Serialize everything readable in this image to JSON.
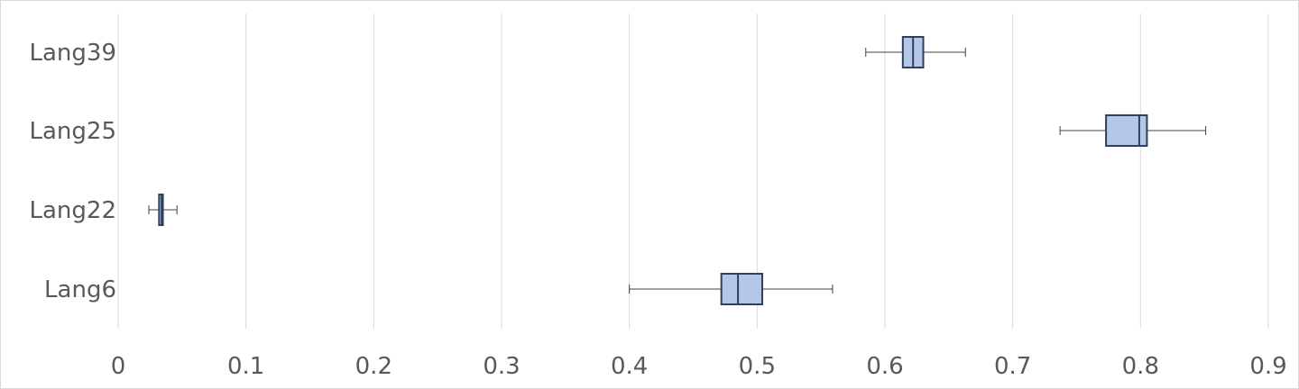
{
  "chart_data": {
    "type": "boxplot",
    "orientation": "horizontal",
    "title": "",
    "xlabel": "",
    "ylabel": "",
    "categories": [
      "Lang39",
      "Lang25",
      "Lang22",
      "Lang6"
    ],
    "xlim": [
      0,
      0.9
    ],
    "xticks": [
      0,
      0.1,
      0.2,
      0.3,
      0.4,
      0.5,
      0.6,
      0.7,
      0.8,
      0.9
    ],
    "xtick_labels": [
      "0",
      "0.1",
      "0.2",
      "0.3",
      "0.4",
      "0.5",
      "0.6",
      "0.7",
      "0.8",
      "0.9"
    ],
    "grid": "vertical",
    "legend": "none",
    "boxes": [
      {
        "category": "Lang39",
        "min": 0.585,
        "q1": 0.614,
        "median": 0.622,
        "q3": 0.63,
        "max": 0.663
      },
      {
        "category": "Lang25",
        "min": 0.737,
        "q1": 0.773,
        "median": 0.799,
        "q3": 0.805,
        "max": 0.851
      },
      {
        "category": "Lang22",
        "min": 0.024,
        "q1": 0.032,
        "median": 0.034,
        "q3": 0.035,
        "max": 0.046
      },
      {
        "category": "Lang6",
        "min": 0.4,
        "q1": 0.472,
        "median": 0.485,
        "q3": 0.504,
        "max": 0.559
      }
    ],
    "colors": {
      "box_fill": "#b4c7e7",
      "box_stroke": "#2f3f5e",
      "whisker": "#404040",
      "grid": "#d9d9d9",
      "text": "#595959"
    }
  }
}
